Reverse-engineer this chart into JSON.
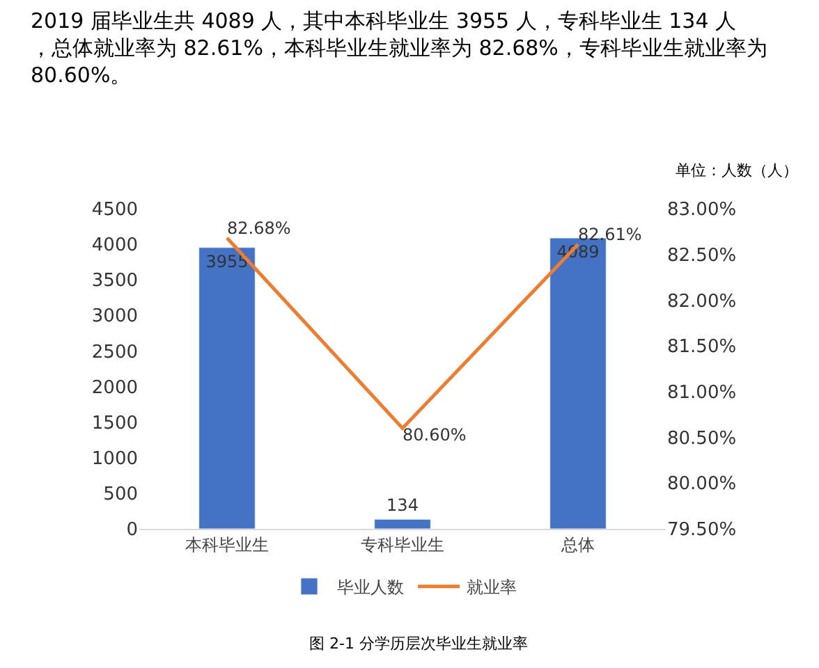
{
  "chart_data": {
    "type": "bar",
    "categories": [
      "本科毕业生",
      "专科毕业生",
      "总体"
    ],
    "series": [
      {
        "name": "毕业人数",
        "color": "#4472c4",
        "values": [
          3955,
          134,
          4089
        ],
        "value_labels": [
          "3955",
          "134",
          "4089"
        ]
      },
      {
        "name": "就业率",
        "type": "line",
        "axis": "y2",
        "color": "#ed7d31",
        "values": [
          82.68,
          80.6,
          82.61
        ],
        "value_labels": [
          "82.68%",
          "80.60%",
          "82.61%"
        ],
        "marker": "none"
      }
    ],
    "ylim": [
      0,
      4500
    ],
    "yticks": [
      0,
      500,
      1000,
      1500,
      2000,
      2500,
      3000,
      3500,
      4000,
      4500
    ],
    "y2lim": [
      79.5,
      83.0
    ],
    "y2ticks": [
      {
        "value": 79.5,
        "label": "79.50%"
      },
      {
        "value": 80.0,
        "label": "80.00%"
      },
      {
        "value": 80.5,
        "label": "80.50%"
      },
      {
        "value": 81.0,
        "label": "81.00%"
      },
      {
        "value": 81.5,
        "label": "81.50%"
      },
      {
        "value": 82.0,
        "label": "82.00%"
      },
      {
        "value": 82.5,
        "label": "82.50%"
      },
      {
        "value": 83.0,
        "label": "83.00%"
      }
    ],
    "grid": false,
    "legend": "bottom",
    "annotations": [
      "2019 届毕业生共 4089 人，其中本科毕业生 3955 人，专科毕业生 134 人，总体就业率为 82.61%，本科毕业生就业率为 82.68%，专科毕业生就业率为 80.60%。",
      "单位：人数（人）",
      "图 2-1 分学历层次毕业生就业率"
    ]
  }
}
